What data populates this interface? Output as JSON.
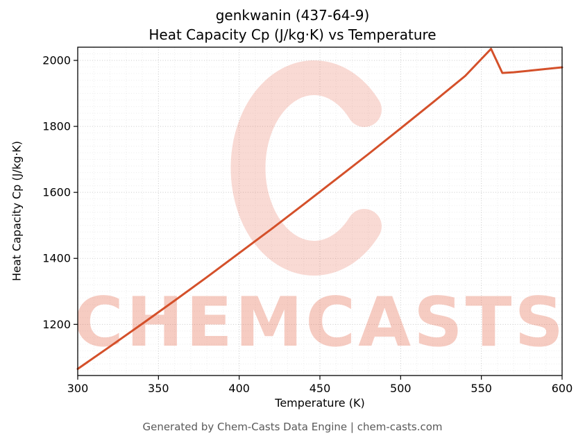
{
  "chart_data": {
    "type": "line",
    "title_line1": "genkwanin (437-64-9)",
    "title_line2": "Heat Capacity Cp (J/kg·K) vs Temperature",
    "xlabel": "Temperature (K)",
    "ylabel": "Heat Capacity Cp (J/kg·K)",
    "xlim": [
      300,
      600
    ],
    "ylim": [
      1045,
      2040
    ],
    "xticks": [
      300,
      350,
      400,
      450,
      500,
      550,
      600
    ],
    "yticks": [
      1200,
      1400,
      1600,
      1800,
      2000
    ],
    "x_minor_step": 10,
    "y_minor_step": 20,
    "grid": true,
    "legend": "none",
    "line_color": "#d4502a",
    "series": [
      {
        "name": "Heat Capacity Cp",
        "x": [
          300,
          320,
          340,
          360,
          380,
          400,
          420,
          440,
          460,
          480,
          500,
          520,
          540,
          556,
          563,
          570,
          580,
          590,
          600
        ],
        "y": [
          1065,
          1133,
          1202,
          1272,
          1343,
          1416,
          1489,
          1564,
          1640,
          1716,
          1794,
          1873,
          1953,
          2035,
          1962,
          1964,
          1969,
          1974,
          1979
        ]
      }
    ]
  },
  "watermark": {
    "text": "CHEMCASTS",
    "color": "#e2583a"
  },
  "footer": {
    "text": "Generated by Chem-Casts Data Engine | chem-casts.com"
  }
}
